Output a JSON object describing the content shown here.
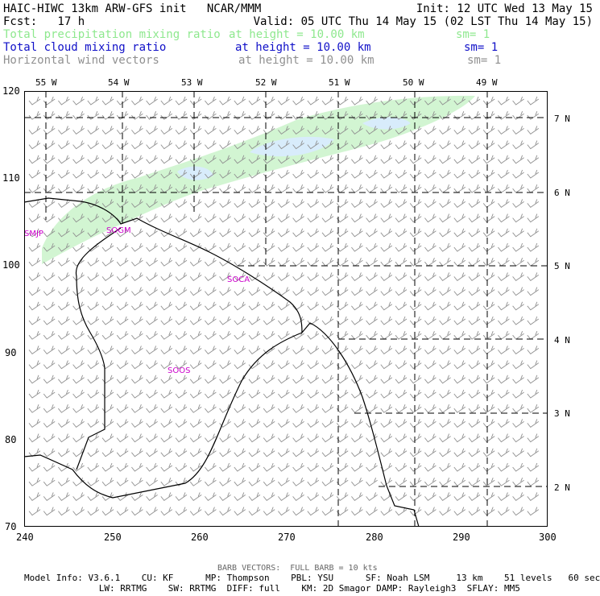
{
  "header": {
    "line1_left": "HAIC-HIWC 13km ARW-GFS init   NCAR/MMM",
    "line1_right": "Init: 12 UTC Wed 13 May 15",
    "line2_left": "Fcst:   17 h",
    "line2_right": "Valid: 05 UTC Thu 14 May 15 (02 LST Thu 14 May 15)",
    "fields": [
      {
        "name": "Total precipitation mixing ratio",
        "height": "at height = 10.00 km",
        "sm": "sm= 1",
        "color": "#8ee88e"
      },
      {
        "name": "Total cloud mixing ratio",
        "height": "at height = 10.00 km",
        "sm": "sm= 1",
        "color": "#1010c8"
      },
      {
        "name": "Horizontal wind vectors",
        "height": "at height = 10.00 km",
        "sm": "sm= 1",
        "color": "#909090"
      }
    ]
  },
  "map": {
    "top_lon_labels": [
      "55 W",
      "54 W",
      "53 W",
      "52 W",
      "51 W",
      "50 W",
      "49 W"
    ],
    "right_lat_labels": [
      "7 N",
      "6 N",
      "5 N",
      "4 N",
      "3 N",
      "2 N"
    ],
    "x_ticks": [
      "240",
      "250",
      "260",
      "270",
      "280",
      "290",
      "300"
    ],
    "y_ticks": [
      "70",
      "80",
      "90",
      "100",
      "110",
      "120"
    ],
    "x_range": [
      240,
      300
    ],
    "y_range": [
      70,
      120
    ],
    "stations": [
      "SMJP",
      "SOGM",
      "SOCA",
      "SOOS"
    ],
    "station_color": "#cc00cc",
    "precip_color": "#d2f5d2",
    "cloud_color": "#d8ecfb"
  },
  "footer": {
    "barb_note": "BARB VECTORS:  FULL BARB = 10 kts",
    "info1": "Model Info: V3.6.1    CU: KF      MP: Thompson    PBL: YSU      SF: Noah LSM     13 km    51 levels   60 sec",
    "info2": "              LW: RRTMG    SW: RRTMG  DIFF: full    KM: 2D Smagor DAMP: Rayleigh3  SFLAY: MM5"
  }
}
